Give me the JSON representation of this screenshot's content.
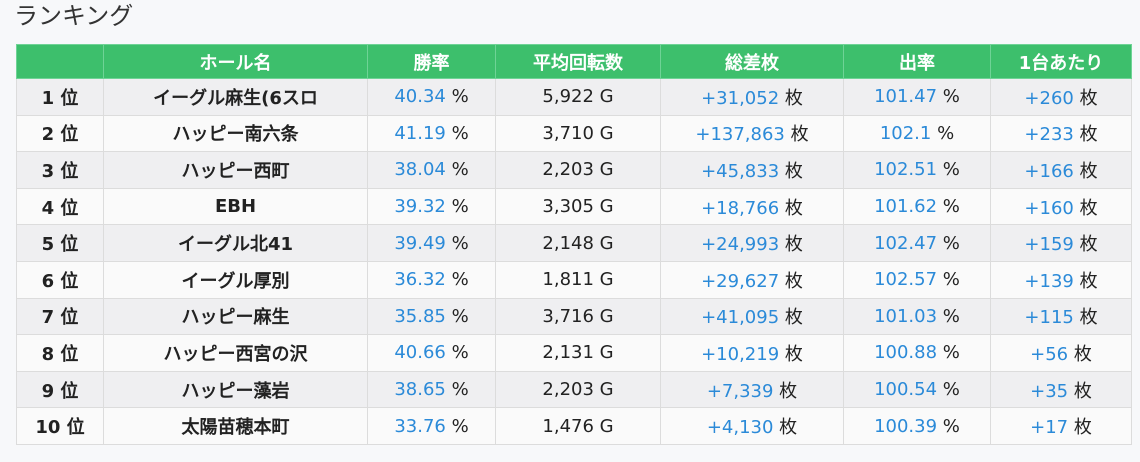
{
  "header": {
    "title": "ランキング"
  },
  "table": {
    "columns": [
      {
        "label": ""
      },
      {
        "label": "ホール名"
      },
      {
        "label": "勝率",
        "unit": "%",
        "value_color": "#2b8ad8"
      },
      {
        "label": "平均回転数",
        "unit": "G",
        "value_color": "#222222"
      },
      {
        "label": "総差枚",
        "unit": "枚",
        "value_color": "#2b8ad8"
      },
      {
        "label": "出率",
        "unit": "%",
        "value_color": "#2b8ad8"
      },
      {
        "label": "1台あたり",
        "unit": "枚",
        "value_color": "#2b8ad8"
      }
    ],
    "rows": [
      [
        "1 位",
        "イーグル麻生(6スロ",
        "40.34",
        "5,922",
        "+31,052",
        "101.47",
        "+260"
      ],
      [
        "2 位",
        "ハッピー南六条",
        "41.19",
        "3,710",
        "+137,863",
        "102.1",
        "+233"
      ],
      [
        "3 位",
        "ハッピー西町",
        "38.04",
        "2,203",
        "+45,833",
        "102.51",
        "+166"
      ],
      [
        "4 位",
        "EBH",
        "39.32",
        "3,305",
        "+18,766",
        "101.62",
        "+160"
      ],
      [
        "5 位",
        "イーグル北41",
        "39.49",
        "2,148",
        "+24,993",
        "102.47",
        "+159"
      ],
      [
        "6 位",
        "イーグル厚別",
        "36.32",
        "1,811",
        "+29,627",
        "102.57",
        "+139"
      ],
      [
        "7 位",
        "ハッピー麻生",
        "35.85",
        "3,716",
        "+41,095",
        "101.03",
        "+115"
      ],
      [
        "8 位",
        "ハッピー西宮の沢",
        "40.66",
        "2,131",
        "+10,219",
        "100.88",
        "+56"
      ],
      [
        "9 位",
        "ハッピー藻岩",
        "38.65",
        "2,203",
        "+7,339",
        "100.54",
        "+35"
      ],
      [
        "10 位",
        "太陽苗穂本町",
        "33.76",
        "1,476",
        "+4,130",
        "100.39",
        "+17"
      ]
    ]
  }
}
